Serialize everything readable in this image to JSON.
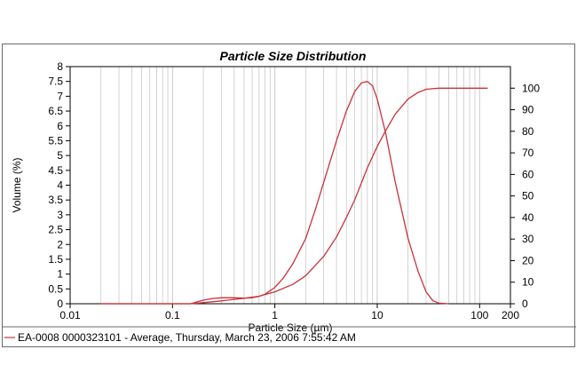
{
  "colors": {
    "series": "#c8323a",
    "grid": "#c8c8c8",
    "axis": "#000000",
    "frame": "#6a6a6a"
  },
  "chart_data": {
    "type": "line",
    "title": "Particle Size Distribution",
    "xlabel": "Particle Size (µm)",
    "ylabel": "Volume (%)",
    "x_scale": "log",
    "xlim": [
      0.01,
      200
    ],
    "ylim": [
      0,
      8
    ],
    "y2lim": [
      0,
      110
    ],
    "x_ticks": [
      {
        "v": 0.01,
        "label": "0.01"
      },
      {
        "v": 0.1,
        "label": "0.1"
      },
      {
        "v": 1,
        "label": "1"
      },
      {
        "v": 10,
        "label": "10"
      },
      {
        "v": 100,
        "label": "100"
      },
      {
        "v": 200,
        "label": "200"
      }
    ],
    "y_ticks": [
      {
        "v": 0,
        "label": "0"
      },
      {
        "v": 0.5,
        "label": "0.5"
      },
      {
        "v": 1,
        "label": "1"
      },
      {
        "v": 1.5,
        "label": "1.5"
      },
      {
        "v": 2,
        "label": "2"
      },
      {
        "v": 2.5,
        "label": "2.5"
      },
      {
        "v": 3,
        "label": "3"
      },
      {
        "v": 3.5,
        "label": "3.5"
      },
      {
        "v": 4,
        "label": "4"
      },
      {
        "v": 4.5,
        "label": "4.5"
      },
      {
        "v": 5,
        "label": "5"
      },
      {
        "v": 5.5,
        "label": "5.5"
      },
      {
        "v": 6,
        "label": "6"
      },
      {
        "v": 6.5,
        "label": "6.5"
      },
      {
        "v": 7,
        "label": "7"
      },
      {
        "v": 7.5,
        "label": "7.5"
      },
      {
        "v": 8,
        "label": "8"
      }
    ],
    "y2_ticks": [
      {
        "v": 0,
        "label": "0"
      },
      {
        "v": 10,
        "label": "10"
      },
      {
        "v": 20,
        "label": "20"
      },
      {
        "v": 30,
        "label": "30"
      },
      {
        "v": 40,
        "label": "40"
      },
      {
        "v": 50,
        "label": "50"
      },
      {
        "v": 60,
        "label": "60"
      },
      {
        "v": 70,
        "label": "70"
      },
      {
        "v": 80,
        "label": "80"
      },
      {
        "v": 90,
        "label": "90"
      },
      {
        "v": 100,
        "label": "100"
      }
    ],
    "grid": true,
    "legend_position": "bottom-left",
    "legend_label": "EA-0008 0000323101 - Average, Thursday, March 23, 2006 7:55:42 AM",
    "series": [
      {
        "name": "EA-0008 0000323101 - Average, Thursday, March 23, 2006 7:55:42 AM",
        "axis": "left",
        "x": [
          0.02,
          0.15,
          0.17,
          0.2,
          0.25,
          0.3,
          0.4,
          0.5,
          0.6,
          0.7,
          0.8,
          1.0,
          1.2,
          1.5,
          2.0,
          2.5,
          3.0,
          4.0,
          5.0,
          6.0,
          7.0,
          8.0,
          9.0,
          10.0,
          12.0,
          15.0,
          20.0,
          25.0,
          30.0,
          35.0,
          40.0,
          50.0
        ],
        "y": [
          0,
          0,
          0.05,
          0.12,
          0.18,
          0.2,
          0.2,
          0.19,
          0.2,
          0.25,
          0.32,
          0.55,
          0.85,
          1.35,
          2.2,
          3.2,
          4.1,
          5.5,
          6.5,
          7.15,
          7.45,
          7.5,
          7.35,
          6.9,
          5.8,
          4.1,
          2.2,
          1.1,
          0.4,
          0.1,
          0.02,
          0
        ]
      },
      {
        "name": "",
        "axis": "right",
        "x": [
          0.02,
          0.15,
          0.2,
          0.3,
          0.4,
          0.5,
          0.7,
          1.0,
          1.5,
          2.0,
          3.0,
          4.0,
          5.0,
          6.0,
          7.0,
          8.0,
          10.0,
          12.0,
          15.0,
          20.0,
          25.0,
          30.0,
          40.0,
          50.0,
          60.0,
          80.0,
          100.0,
          120.0
        ],
        "y": [
          0,
          0,
          0.5,
          1.3,
          2,
          2.5,
          3.5,
          5.5,
          9,
          13,
          22,
          31,
          40,
          48,
          56,
          63,
          73,
          80,
          88,
          95,
          98,
          99.5,
          100,
          100,
          100,
          100,
          100,
          100
        ]
      }
    ]
  }
}
